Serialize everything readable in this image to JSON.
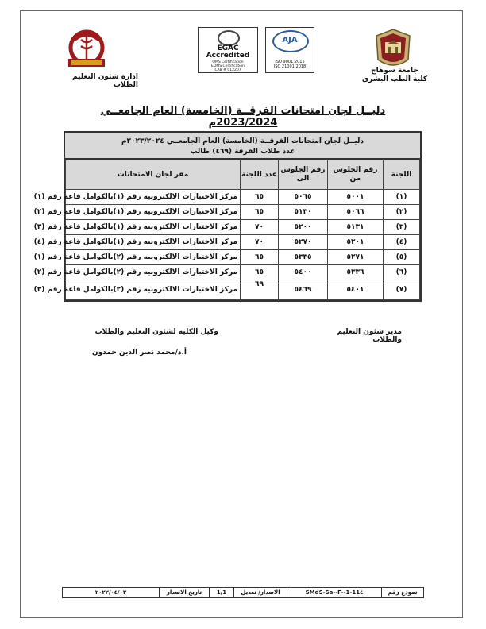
{
  "header": {
    "university": "جامعة سوهاج",
    "faculty": "كلية الطب البشرى",
    "affairs": "ادارة شئون التعليم الطلاب",
    "egac": {
      "big": "EGAC",
      "accredited": "Accredited",
      "lines": [
        "QMS Certification",
        "EOMS Certification",
        "CAB # 012207"
      ]
    },
    "aja": {
      "letters": "AJA",
      "lines": [
        "ISO 9001:2015",
        "ISO 21001:2018"
      ]
    }
  },
  "main_title": "دليــل لجان امتحانات الفرقــة (الخامسة) العام الجامعــي 2023/2024م",
  "table": {
    "head_line1": "دليــل لجان امتحانات الفرقــة (الخامسة) العام الجامعــي ٢٠٢٣/٢٠٢٤م",
    "head_line2": "عدد طلاب الفرقة (٤٦٩) طالب",
    "columns": [
      "اللجنة",
      "رقم الجلوس من",
      "رقم الجلوس الى",
      "عدد اللجنة",
      "مقر لجان الامتحانات"
    ],
    "rows": [
      {
        "num": "(١)",
        "from": "٥٠٠١",
        "to": "٥٠٦٥",
        "count": "٦٥",
        "place": "مركز الاختبارات الالكترونيه رقم (١)بالكوامل قاعة رقم (١)"
      },
      {
        "num": "(٢)",
        "from": "٥٠٦٦",
        "to": "٥١٣٠",
        "count": "٦٥",
        "place": "مركز الاختبارات الالكترونيه رقم (١)بالكوامل قاعة رقم (٢)"
      },
      {
        "num": "(٣)",
        "from": "٥١٣١",
        "to": "٥٢٠٠",
        "count": "٧٠",
        "place": "مركز الاختبارات الالكترونيه رقم (١)بالكوامل قاعة رقم (٣)"
      },
      {
        "num": "(٤)",
        "from": "٥٢٠١",
        "to": "٥٢٧٠",
        "count": "٧٠",
        "place": "مركز الاختبارات الالكترونيه رقم (١)بالكوامل قاعة رقم (٤)"
      },
      {
        "num": "(٥)",
        "from": "٥٢٧١",
        "to": "٥٣٣٥",
        "count": "٦٥",
        "place": "مركز الاختبارات الالكترونيه رقم (٢)بالكوامل قاعة رقم (١)"
      },
      {
        "num": "(٦)",
        "from": "٥٣٣٦",
        "to": "٥٤٠٠",
        "count": "٦٥",
        "place": "مركز الاختبارات الالكترونيه رقم (٢)بالكوامل قاعة رقم (٢)"
      },
      {
        "num": "(٧)",
        "from": "٥٤٠١",
        "to": "٥٤٦٩",
        "count": "٦٩",
        "place": "مركز الاختبارات الالكترونيه رقم (٢)بالكوامل قاعة رقم (٣)"
      }
    ]
  },
  "signatures": {
    "right_title": "مدير شئون التعليم والطلاب",
    "left_title": "وكيل الكليه لشئون التعليم والطلاب",
    "left_name": "أ.د/محمد نصر الدين حمدون"
  },
  "footer": {
    "form_label": "نموذج رقم",
    "form_code": "SMdS-Sa--F--1-11٤",
    "issue_label": "الاصدار/ تعديل",
    "issue_value": "1/1",
    "date_label": "تاريخ الاصدار",
    "date_value": "٢٠٢٢/٠٤/٠٣"
  }
}
